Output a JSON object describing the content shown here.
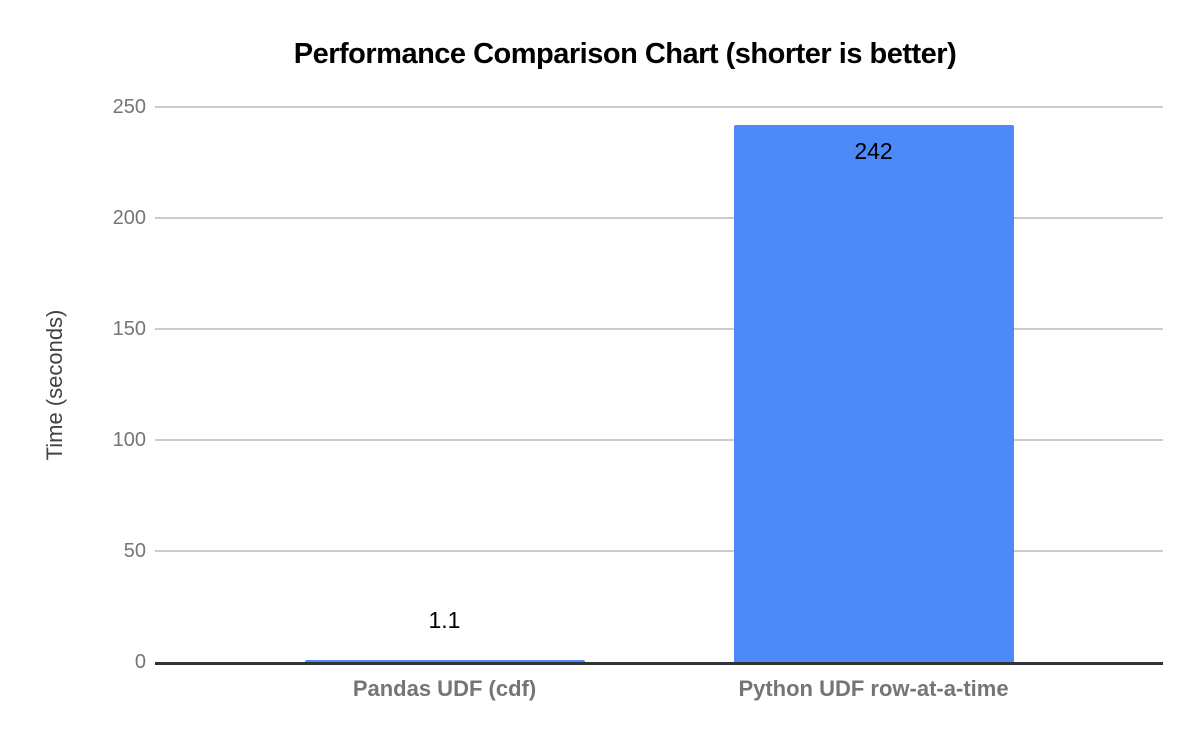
{
  "chart_data": {
    "type": "bar",
    "title": "Performance Comparison Chart (shorter is better)",
    "categories": [
      "Pandas UDF (cdf)",
      "Python UDF row-at-a-time"
    ],
    "values": [
      1.1,
      242
    ],
    "value_labels": [
      "1.1",
      "242"
    ],
    "xlabel": "",
    "ylabel": "Time (seconds)",
    "ylim": [
      0,
      250
    ],
    "yticks": [
      0,
      50,
      100,
      150,
      200,
      250
    ],
    "grid": true,
    "legend": "none",
    "colors": {
      "bar": "#4d89f9",
      "title": "#000000",
      "axis_title": "#424242",
      "tick_label": "#757575",
      "category_label": "#757575",
      "value_label": "#000000",
      "gridline": "#cccccc",
      "baseline": "#333333",
      "background": "#ffffff"
    }
  }
}
